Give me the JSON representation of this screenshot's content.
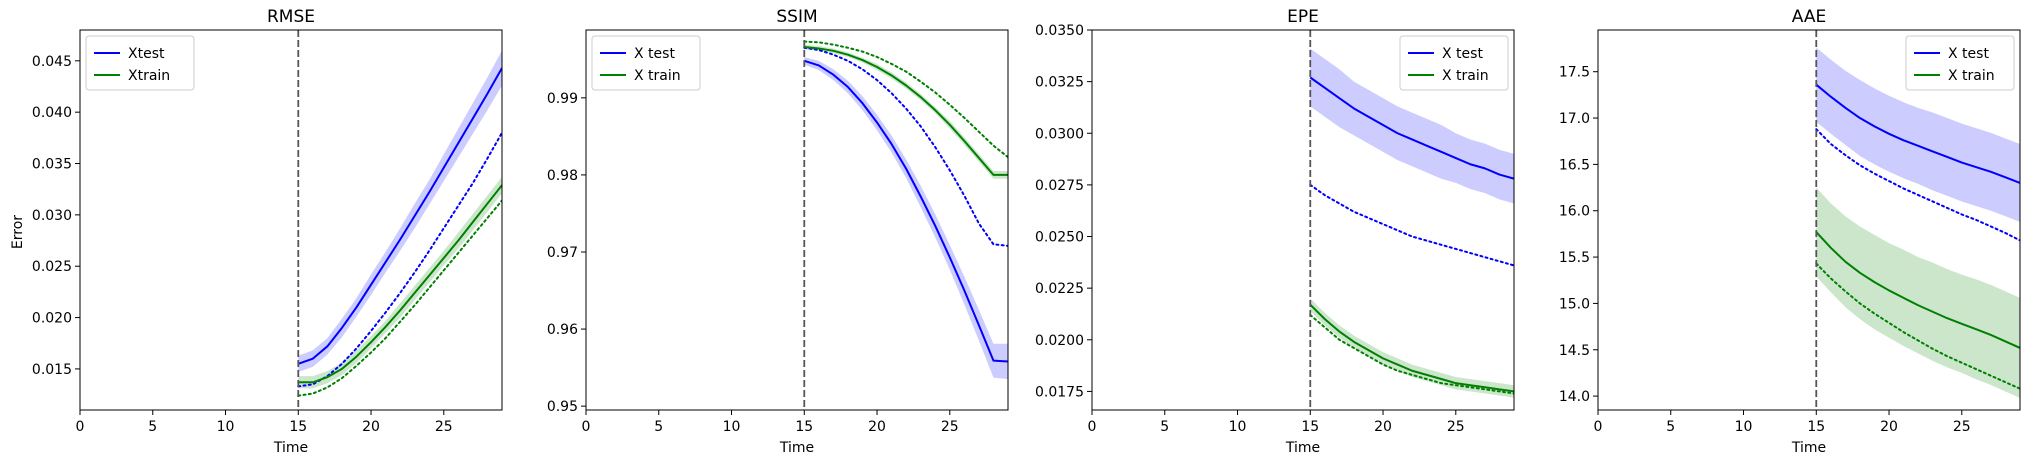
{
  "figure": {
    "ylabel": "Error"
  },
  "chart_data": [
    {
      "type": "line",
      "title": "RMSE",
      "xlabel": "Time",
      "ylabel": "Error",
      "xlim": [
        0,
        29
      ],
      "ylim": [
        0.011,
        0.048
      ],
      "xticks": [
        0,
        5,
        10,
        15,
        20,
        25
      ],
      "yticks": [
        0.015,
        0.02,
        0.025,
        0.03,
        0.035,
        0.04,
        0.045
      ],
      "ytick_labels": [
        "0.015",
        "0.020",
        "0.025",
        "0.030",
        "0.035",
        "0.040",
        "0.045"
      ],
      "vline_x": 15,
      "legend": {
        "location": "upper-left",
        "entries": [
          {
            "label": "Xtest",
            "color": "#0000ff"
          },
          {
            "label": "Xtrain",
            "color": "#008000"
          }
        ]
      },
      "x": [
        15,
        16,
        17,
        18,
        19,
        20,
        21,
        22,
        23,
        24,
        25,
        26,
        27,
        28,
        29
      ],
      "series": [
        {
          "name": "Xtest",
          "color": "#0000ff",
          "style": "solid",
          "band": true,
          "values": [
            0.0155,
            0.016,
            0.0172,
            0.019,
            0.021,
            0.0232,
            0.0254,
            0.0276,
            0.0299,
            0.0322,
            0.0346,
            0.037,
            0.0394,
            0.0418,
            0.0443
          ],
          "band_halfwidth": [
            0.0008,
            0.0008,
            0.0008,
            0.0009,
            0.0009,
            0.001,
            0.001,
            0.0011,
            0.0012,
            0.0012,
            0.0013,
            0.0014,
            0.0015,
            0.0016,
            0.0017
          ]
        },
        {
          "color": "#0000ff",
          "style": "dotted",
          "band": false,
          "values": [
            0.0133,
            0.0135,
            0.0143,
            0.0155,
            0.017,
            0.0187,
            0.0205,
            0.0224,
            0.0244,
            0.0265,
            0.0287,
            0.0309,
            0.0331,
            0.0355,
            0.038
          ]
        },
        {
          "name": "Xtrain",
          "color": "#008000",
          "style": "solid",
          "band": true,
          "values": [
            0.0137,
            0.0137,
            0.0142,
            0.015,
            0.0162,
            0.0176,
            0.0191,
            0.0207,
            0.0224,
            0.0241,
            0.0258,
            0.0275,
            0.0293,
            0.0311,
            0.0329
          ],
          "band_halfwidth": [
            0.0006,
            0.0006,
            0.0006,
            0.0006,
            0.0006,
            0.0006,
            0.0006,
            0.0007,
            0.0007,
            0.0007,
            0.0007,
            0.0008,
            0.0008,
            0.0008,
            0.0008
          ]
        },
        {
          "color": "#008000",
          "style": "dotted",
          "band": false,
          "values": [
            0.0124,
            0.0126,
            0.0132,
            0.0141,
            0.0153,
            0.0166,
            0.018,
            0.0196,
            0.0212,
            0.0229,
            0.0246,
            0.0263,
            0.028,
            0.0297,
            0.0314
          ]
        }
      ]
    },
    {
      "type": "line",
      "title": "SSIM",
      "xlabel": "Time",
      "ylabel": "",
      "xlim": [
        0,
        29
      ],
      "ylim": [
        0.9495,
        0.9988
      ],
      "xticks": [
        0,
        5,
        10,
        15,
        20,
        25
      ],
      "yticks": [
        0.95,
        0.96,
        0.97,
        0.98,
        0.99
      ],
      "ytick_labels": [
        "0.95",
        "0.96",
        "0.97",
        "0.98",
        "0.99"
      ],
      "vline_x": 15,
      "legend": {
        "location": "upper-left",
        "entries": [
          {
            "label": "X test",
            "color": "#0000ff"
          },
          {
            "label": "X train",
            "color": "#008000"
          }
        ]
      },
      "x": [
        15,
        16,
        17,
        18,
        19,
        20,
        21,
        22,
        23,
        24,
        25,
        26,
        27,
        28,
        29
      ],
      "series": [
        {
          "name": "X test",
          "color": "#0000ff",
          "style": "solid",
          "band": true,
          "values": [
            0.9948,
            0.9942,
            0.993,
            0.9914,
            0.9893,
            0.9868,
            0.984,
            0.9808,
            0.9772,
            0.9734,
            0.9693,
            0.965,
            0.9605,
            0.9559,
            0.9558
          ],
          "band_halfwidth": [
            0.0005,
            0.0006,
            0.0007,
            0.0008,
            0.0009,
            0.001,
            0.0011,
            0.0012,
            0.0014,
            0.0015,
            0.0016,
            0.0018,
            0.002,
            0.0022,
            0.0023
          ]
        },
        {
          "color": "#0000ff",
          "style": "dotted",
          "band": false,
          "values": [
            0.9965,
            0.9962,
            0.9956,
            0.9948,
            0.9937,
            0.9923,
            0.9906,
            0.9886,
            0.9863,
            0.9836,
            0.9806,
            0.9773,
            0.9737,
            0.971,
            0.9708
          ]
        },
        {
          "name": "X train",
          "color": "#008000",
          "style": "solid",
          "band": true,
          "values": [
            0.9966,
            0.9964,
            0.9961,
            0.9956,
            0.9949,
            0.994,
            0.9929,
            0.9916,
            0.9901,
            0.9884,
            0.9865,
            0.9844,
            0.9822,
            0.98,
            0.98
          ],
          "band_halfwidth": [
            0.0003,
            0.0003,
            0.0003,
            0.0003,
            0.0003,
            0.0004,
            0.0004,
            0.0004,
            0.0004,
            0.0004,
            0.0005,
            0.0005,
            0.0005,
            0.0005,
            0.0005
          ]
        },
        {
          "color": "#008000",
          "style": "dotted",
          "band": false,
          "values": [
            0.9973,
            0.9972,
            0.9969,
            0.9965,
            0.996,
            0.9953,
            0.9944,
            0.9934,
            0.9921,
            0.9907,
            0.9891,
            0.9874,
            0.9856,
            0.9838,
            0.9823
          ]
        }
      ]
    },
    {
      "type": "line",
      "title": "EPE",
      "xlabel": "Time",
      "ylabel": "",
      "xlim": [
        0,
        29
      ],
      "ylim": [
        0.0166,
        0.035
      ],
      "xticks": [
        0,
        5,
        10,
        15,
        20,
        25
      ],
      "yticks": [
        0.0175,
        0.02,
        0.0225,
        0.025,
        0.0275,
        0.03,
        0.0325,
        0.035
      ],
      "ytick_labels": [
        "0.0175",
        "0.0200",
        "0.0225",
        "0.0250",
        "0.0275",
        "0.0300",
        "0.0325",
        "0.0350"
      ],
      "vline_x": 15,
      "legend": {
        "location": "upper-right",
        "entries": [
          {
            "label": "X test",
            "color": "#0000ff"
          },
          {
            "label": "X train",
            "color": "#008000"
          }
        ]
      },
      "x": [
        15,
        16,
        17,
        18,
        19,
        20,
        21,
        22,
        23,
        24,
        25,
        26,
        27,
        28,
        29
      ],
      "series": [
        {
          "name": "X test",
          "color": "#0000ff",
          "style": "solid",
          "band": true,
          "values": [
            0.0327,
            0.0322,
            0.0317,
            0.0312,
            0.0308,
            0.0304,
            0.03,
            0.0297,
            0.0294,
            0.0291,
            0.0288,
            0.0285,
            0.0283,
            0.028,
            0.0278
          ],
          "band_halfwidth": [
            0.0014,
            0.0014,
            0.0014,
            0.0013,
            0.0013,
            0.0013,
            0.0013,
            0.0013,
            0.0013,
            0.0013,
            0.0012,
            0.0012,
            0.0012,
            0.0012,
            0.0012
          ]
        },
        {
          "color": "#0000ff",
          "style": "dotted",
          "band": false,
          "values": [
            0.0275,
            0.027,
            0.0266,
            0.0262,
            0.0259,
            0.0256,
            0.0253,
            0.025,
            0.0248,
            0.0246,
            0.0244,
            0.0242,
            0.024,
            0.0238,
            0.0236
          ]
        },
        {
          "name": "X train",
          "color": "#008000",
          "style": "solid",
          "band": true,
          "values": [
            0.0217,
            0.021,
            0.0204,
            0.0199,
            0.0195,
            0.0191,
            0.0188,
            0.0185,
            0.0183,
            0.0181,
            0.0179,
            0.0178,
            0.0177,
            0.0176,
            0.0175
          ],
          "band_halfwidth": [
            0.0003,
            0.0003,
            0.0003,
            0.0003,
            0.0003,
            0.0003,
            0.0003,
            0.0003,
            0.0003,
            0.0003,
            0.0003,
            0.0003,
            0.0003,
            0.0003,
            0.0003
          ]
        },
        {
          "color": "#008000",
          "style": "dotted",
          "band": false,
          "values": [
            0.0212,
            0.0206,
            0.02,
            0.0196,
            0.0192,
            0.0188,
            0.0185,
            0.0183,
            0.0181,
            0.0179,
            0.0178,
            0.0177,
            0.0176,
            0.0175,
            0.0174
          ]
        }
      ]
    },
    {
      "type": "line",
      "title": "AAE",
      "xlabel": "Time",
      "ylabel": "",
      "xlim": [
        0,
        29
      ],
      "ylim": [
        13.85,
        17.95
      ],
      "xticks": [
        0,
        5,
        10,
        15,
        20,
        25
      ],
      "yticks": [
        14.0,
        14.5,
        15.0,
        15.5,
        16.0,
        16.5,
        17.0,
        17.5
      ],
      "ytick_labels": [
        "14.0",
        "14.5",
        "15.0",
        "15.5",
        "16.0",
        "16.5",
        "17.0",
        "17.5"
      ],
      "vline_x": 15,
      "legend": {
        "location": "upper-right",
        "entries": [
          {
            "label": "X test",
            "color": "#0000ff"
          },
          {
            "label": "X train",
            "color": "#008000"
          }
        ]
      },
      "x": [
        15,
        16,
        17,
        18,
        19,
        20,
        21,
        22,
        23,
        24,
        25,
        26,
        27,
        28,
        29
      ],
      "series": [
        {
          "name": "X test",
          "color": "#0000ff",
          "style": "solid",
          "band": true,
          "values": [
            17.36,
            17.23,
            17.11,
            17.0,
            16.91,
            16.83,
            16.76,
            16.7,
            16.64,
            16.58,
            16.52,
            16.47,
            16.42,
            16.36,
            16.3
          ],
          "band_halfwidth": [
            0.4,
            0.4,
            0.4,
            0.41,
            0.41,
            0.41,
            0.41,
            0.41,
            0.42,
            0.42,
            0.42,
            0.42,
            0.42,
            0.42,
            0.42
          ]
        },
        {
          "color": "#0000ff",
          "style": "dotted",
          "band": false,
          "values": [
            16.88,
            16.72,
            16.6,
            16.49,
            16.4,
            16.32,
            16.24,
            16.17,
            16.1,
            16.03,
            15.96,
            15.9,
            15.83,
            15.76,
            15.68
          ]
        },
        {
          "name": "X train",
          "color": "#008000",
          "style": "solid",
          "band": true,
          "values": [
            15.77,
            15.6,
            15.45,
            15.33,
            15.23,
            15.14,
            15.06,
            14.98,
            14.91,
            14.84,
            14.78,
            14.72,
            14.66,
            14.59,
            14.52
          ],
          "band_halfwidth": [
            0.48,
            0.48,
            0.49,
            0.5,
            0.51,
            0.51,
            0.52,
            0.52,
            0.53,
            0.53,
            0.53,
            0.54,
            0.54,
            0.54,
            0.54
          ]
        },
        {
          "color": "#008000",
          "style": "dotted",
          "band": false,
          "values": [
            15.43,
            15.27,
            15.13,
            15.0,
            14.89,
            14.79,
            14.69,
            14.6,
            14.51,
            14.43,
            14.36,
            14.29,
            14.22,
            14.15,
            14.08
          ]
        }
      ]
    }
  ]
}
